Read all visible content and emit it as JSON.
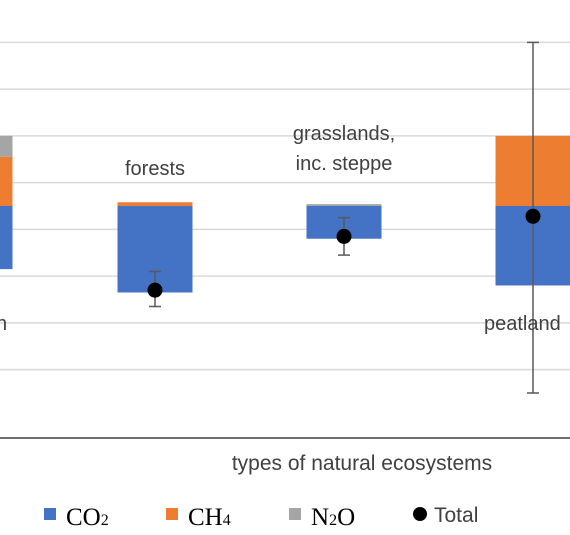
{
  "chart_data": {
    "type": "bar",
    "stacked": true,
    "categories": [
      "",
      "forests",
      "grasslands, inc. steppe",
      "peatlands"
    ],
    "category_labels": [
      {
        "lines": [
          "n"
        ]
      },
      {
        "lines": [
          "forests"
        ]
      },
      {
        "lines": [
          "grasslands,",
          "inc. steppe"
        ]
      },
      {
        "lines": [
          "peatland"
        ]
      }
    ],
    "xlabel": "types of natural ecosystems",
    "ylabel": "",
    "ylim": [
      -4,
      4.5
    ],
    "grid": true,
    "legend_position": "bottom",
    "series": [
      {
        "name": "CO",
        "sub": "2",
        "color": "#4472c4",
        "values": [
          -1.35,
          -1.85,
          -0.7,
          -1.7
        ]
      },
      {
        "name": "CH",
        "sub": "4",
        "color": "#ed7d31",
        "values": [
          1.05,
          0.08,
          0,
          1.5
        ]
      },
      {
        "name": "N",
        "sub": "2",
        "tail": "O",
        "color": "#a5a5a5",
        "values": [
          0.45,
          0,
          0.04,
          0
        ]
      }
    ],
    "total": {
      "name": "Total",
      "color": "#000000",
      "values": [
        null,
        -1.8,
        -0.65,
        -0.22
      ],
      "error_low": [
        null,
        -2.15,
        -1.05,
        -4.0
      ],
      "error_high": [
        null,
        -1.4,
        -0.25,
        3.5
      ]
    }
  }
}
